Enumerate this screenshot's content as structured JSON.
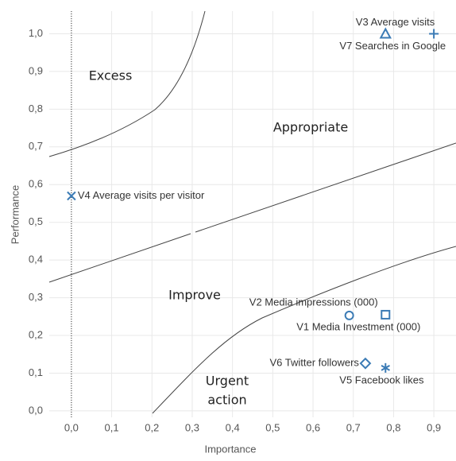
{
  "chart_data": {
    "type": "scatter",
    "xlabel": "Importance",
    "ylabel": "Performance",
    "xlim": [
      -0.055,
      0.955
    ],
    "ylim": [
      -0.017,
      1.06
    ],
    "xticks": [
      {
        "value": 0,
        "label": "0,0"
      },
      {
        "value": 0.1,
        "label": "0,1"
      },
      {
        "value": 0.2,
        "label": "0,2"
      },
      {
        "value": 0.3,
        "label": "0,3"
      },
      {
        "value": 0.4,
        "label": "0,4"
      },
      {
        "value": 0.5,
        "label": "0,5"
      },
      {
        "value": 0.6,
        "label": "0,6"
      },
      {
        "value": 0.7,
        "label": "0,7"
      },
      {
        "value": 0.8,
        "label": "0,8"
      },
      {
        "value": 0.9,
        "label": "0,9"
      }
    ],
    "yticks": [
      {
        "value": 0,
        "label": "0,0"
      },
      {
        "value": 0.1,
        "label": "0,1"
      },
      {
        "value": 0.2,
        "label": "0,2"
      },
      {
        "value": 0.3,
        "label": "0,3"
      },
      {
        "value": 0.4,
        "label": "0,4"
      },
      {
        "value": 0.5,
        "label": "0,5"
      },
      {
        "value": 0.6,
        "label": "0,6"
      },
      {
        "value": 0.7,
        "label": "0,7"
      },
      {
        "value": 0.8,
        "label": "0,8"
      },
      {
        "value": 0.9,
        "label": "0,9"
      },
      {
        "value": 1.0,
        "label": "1,0"
      }
    ],
    "grid": true,
    "color": "#3b7bb5",
    "points": [
      {
        "label": "V3 Average visits",
        "x": 0.78,
        "y": 1.0,
        "marker": "triangle"
      },
      {
        "label": "V7 Searches in Google",
        "x": 0.9,
        "y": 1.0,
        "marker": "plus"
      },
      {
        "label": "V4 Average visits per visitor",
        "x": 0.0,
        "y": 0.57,
        "marker": "x"
      },
      {
        "label": "V2 Media impressions (000)",
        "x": 0.69,
        "y": 0.253,
        "marker": "circle"
      },
      {
        "label": "V1 Media Investment (000)",
        "x": 0.78,
        "y": 0.255,
        "marker": "square"
      },
      {
        "label": "V6 Twitter followers",
        "x": 0.73,
        "y": 0.126,
        "marker": "diamond"
      },
      {
        "label": "V5 Facebook likes",
        "x": 0.78,
        "y": 0.114,
        "marker": "star"
      }
    ],
    "annotations": [
      [
        "Excess"
      ],
      [
        "Appropriate"
      ],
      [
        "Improve"
      ],
      [
        "Urgent",
        "action"
      ]
    ]
  }
}
